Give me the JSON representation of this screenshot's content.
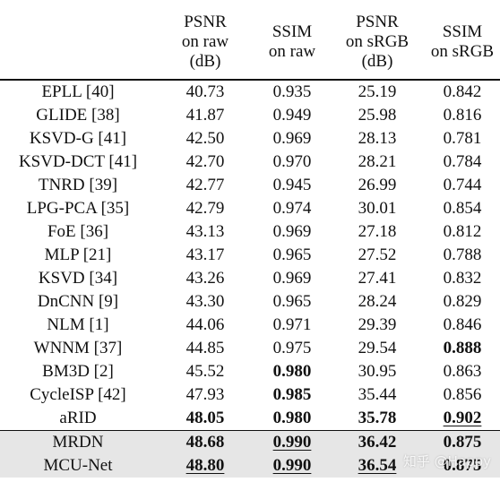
{
  "columns": [
    "",
    "PSNR\non raw\n(dB)",
    "SSIM\non raw",
    "PSNR\non sRGB\n(dB)",
    "SSIM\non sRGB"
  ],
  "rows": [
    {
      "method": "EPLL [40]",
      "psnr_raw": "40.73",
      "ssim_raw": "0.935",
      "psnr_srgb": "25.19",
      "ssim_srgb": "0.842"
    },
    {
      "method": "GLIDE [38]",
      "psnr_raw": "41.87",
      "ssim_raw": "0.949",
      "psnr_srgb": "25.98",
      "ssim_srgb": "0.816"
    },
    {
      "method": "KSVD-G [41]",
      "psnr_raw": "42.50",
      "ssim_raw": "0.969",
      "psnr_srgb": "28.13",
      "ssim_srgb": "0.781"
    },
    {
      "method": "KSVD-DCT [41]",
      "psnr_raw": "42.70",
      "ssim_raw": "0.970",
      "psnr_srgb": "28.21",
      "ssim_srgb": "0.784"
    },
    {
      "method": "TNRD [39]",
      "psnr_raw": "42.77",
      "ssim_raw": "0.945",
      "psnr_srgb": "26.99",
      "ssim_srgb": "0.744"
    },
    {
      "method": "LPG-PCA [35]",
      "psnr_raw": "42.79",
      "ssim_raw": "0.974",
      "psnr_srgb": "30.01",
      "ssim_srgb": "0.854"
    },
    {
      "method": "FoE [36]",
      "psnr_raw": "43.13",
      "ssim_raw": "0.969",
      "psnr_srgb": "27.18",
      "ssim_srgb": "0.812"
    },
    {
      "method": "MLP [21]",
      "psnr_raw": "43.17",
      "ssim_raw": "0.965",
      "psnr_srgb": "27.52",
      "ssim_srgb": "0.788"
    },
    {
      "method": "KSVD [34]",
      "psnr_raw": "43.26",
      "ssim_raw": "0.969",
      "psnr_srgb": "27.41",
      "ssim_srgb": "0.832"
    },
    {
      "method": "DnCNN [9]",
      "psnr_raw": "43.30",
      "ssim_raw": "0.965",
      "psnr_srgb": "28.24",
      "ssim_srgb": "0.829"
    },
    {
      "method": "NLM [1]",
      "psnr_raw": "44.06",
      "ssim_raw": "0.971",
      "psnr_srgb": "29.39",
      "ssim_srgb": "0.846"
    },
    {
      "method": "WNNM [37]",
      "psnr_raw": "44.85",
      "ssim_raw": "0.975",
      "psnr_srgb": "29.54",
      "ssim_srgb": "0.888"
    },
    {
      "method": "BM3D [2]",
      "psnr_raw": "45.52",
      "ssim_raw": "0.980",
      "psnr_srgb": "30.95",
      "ssim_srgb": "0.863"
    },
    {
      "method": "CycleISP [42]",
      "psnr_raw": "47.93",
      "ssim_raw": "0.985",
      "psnr_srgb": "35.44",
      "ssim_srgb": "0.856"
    },
    {
      "method": "aRID",
      "psnr_raw": "48.05",
      "ssim_raw": "0.980",
      "psnr_srgb": "35.78",
      "ssim_srgb": "0.902"
    },
    {
      "method": "MRDN",
      "psnr_raw": "48.68",
      "ssim_raw": "0.990",
      "psnr_srgb": "36.42",
      "ssim_srgb": "0.875"
    },
    {
      "method": "MCU-Net",
      "psnr_raw": "48.80",
      "ssim_raw": "0.990",
      "psnr_srgb": "36.54",
      "ssim_srgb": "0.875"
    }
  ],
  "watermark": "知乎 @Happy"
}
